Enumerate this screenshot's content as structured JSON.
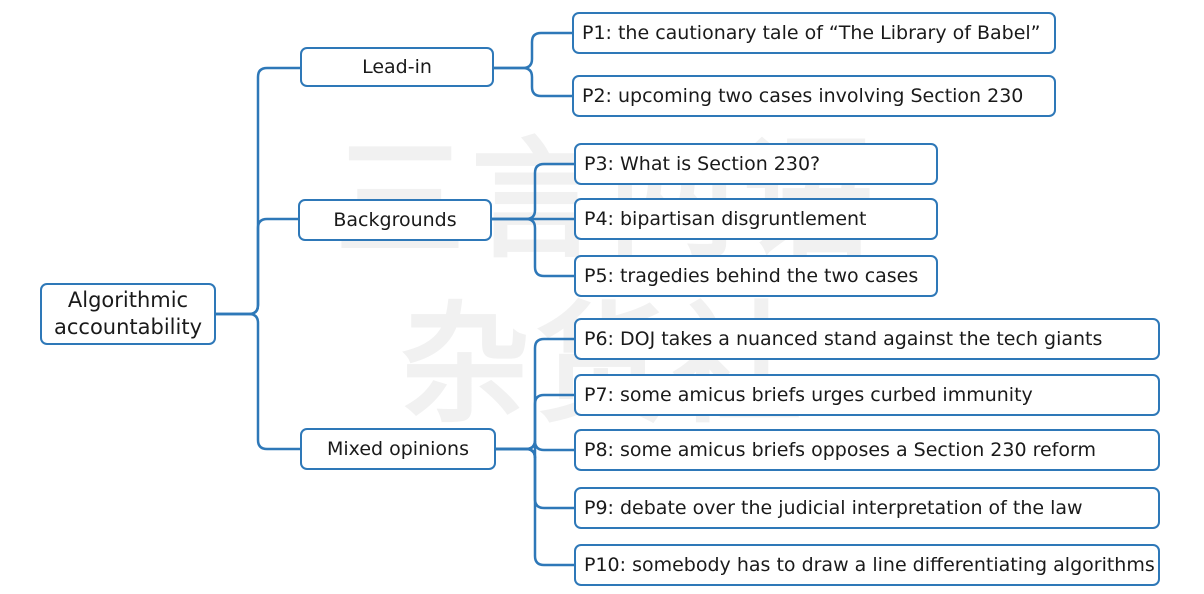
{
  "watermark": {
    "line1": "三言两语",
    "line2": "杂货社"
  },
  "colors": {
    "connector": "#2e78b8",
    "node_border": "#2e78b8",
    "text": "#1a1a1a"
  },
  "mindmap": {
    "root": {
      "line1": "Algorithmic",
      "line2": "accountability"
    },
    "branches": [
      {
        "label": "Lead-in",
        "children": [
          "P1: the cautionary tale of “The Library of Babel”",
          "P2: upcoming two cases involving Section 230"
        ]
      },
      {
        "label": "Backgrounds",
        "children": [
          "P3: What is Section 230?",
          "P4: bipartisan disgruntlement",
          "P5: tragedies behind the two cases"
        ]
      },
      {
        "label": "Mixed opinions",
        "children": [
          "P6: DOJ takes a nuanced stand against the tech giants",
          "P7: some amicus briefs urges curbed immunity",
          "P8: some amicus briefs opposes a Section 230 reform",
          "P9: debate over the judicial interpretation of the law",
          "P10: somebody has to draw a line differentiating algorithms"
        ]
      }
    ]
  }
}
